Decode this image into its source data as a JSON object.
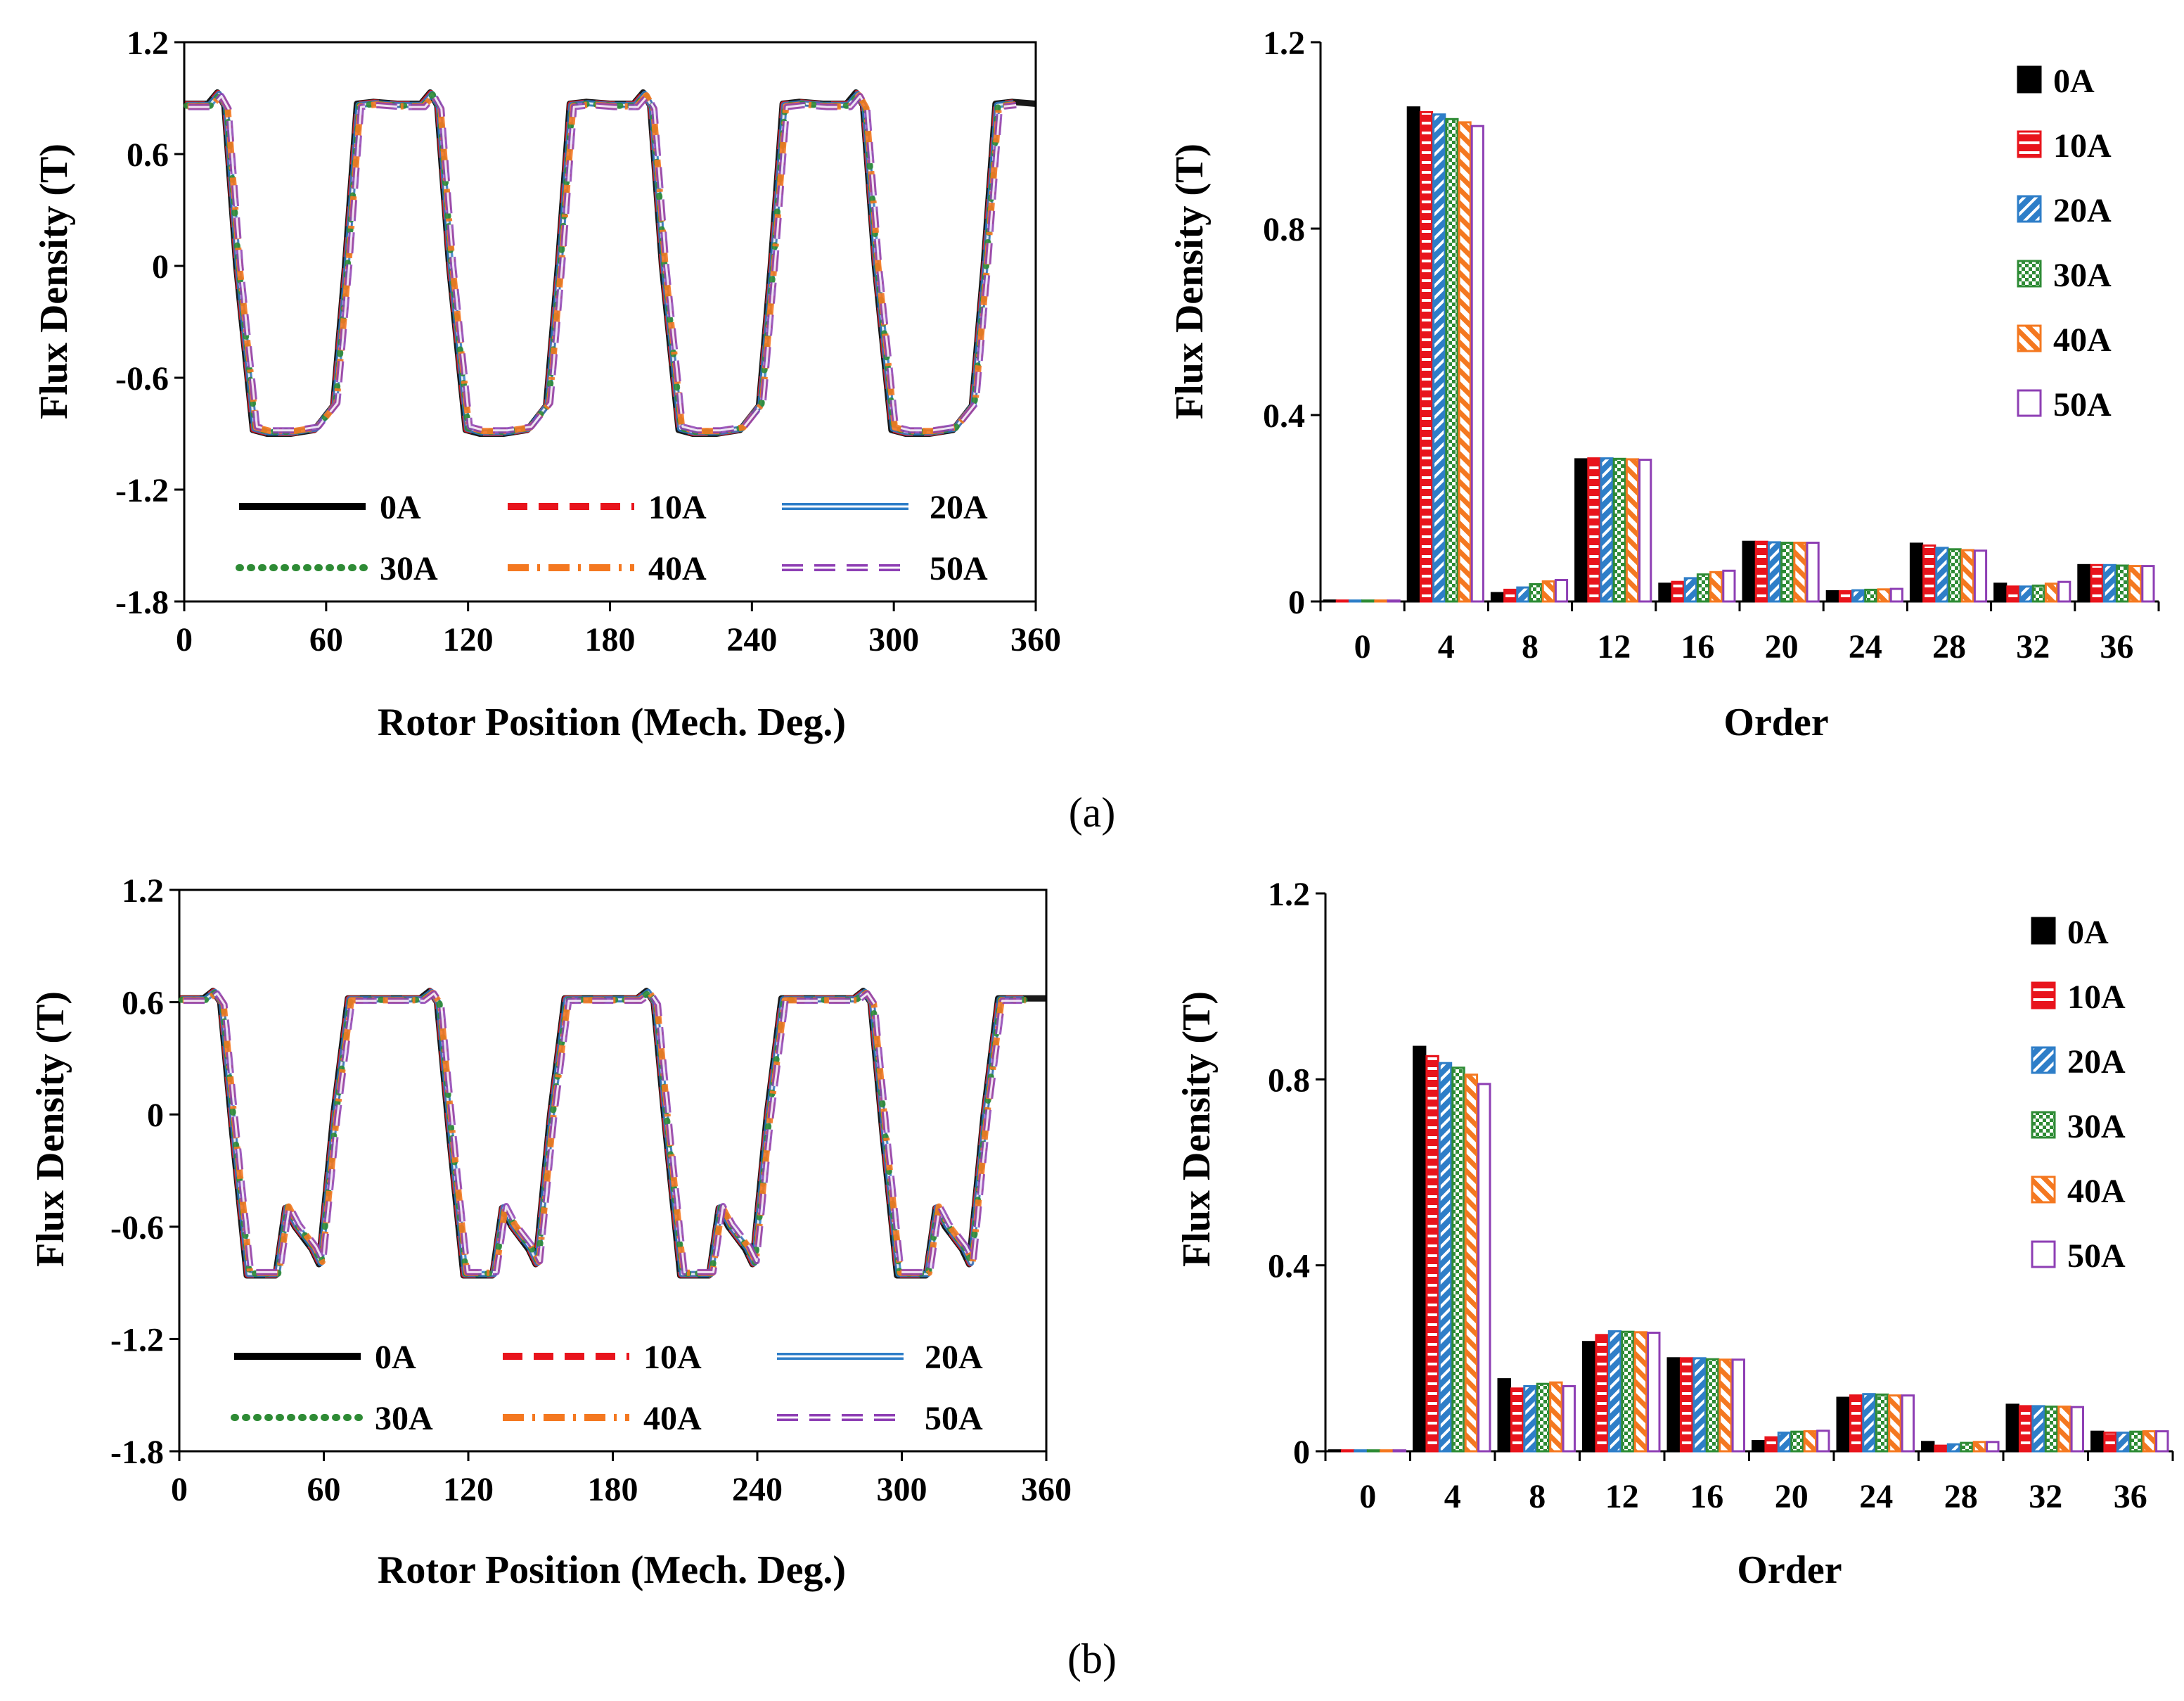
{
  "chart_data": [
    {
      "id": "a-line",
      "type": "line",
      "xlabel": "Rotor Position (Mech. Deg.)",
      "ylabel": "Flux Density (T)",
      "xlim": [
        0,
        360
      ],
      "ylim": [
        -1.8,
        1.2
      ],
      "xticks": [
        "0",
        "60",
        "120",
        "180",
        "240",
        "300",
        "360"
      ],
      "yticks": [
        "1.2",
        "0.6",
        "0",
        "-0.6",
        "-1.2",
        "-1.8"
      ],
      "legend_position": "bottom",
      "series": [
        {
          "name": "0A",
          "color": "#000000",
          "style": "solid"
        },
        {
          "name": "10A",
          "color": "#e8141c",
          "style": "dash"
        },
        {
          "name": "20A",
          "color": "#2e7ec8",
          "style": "double"
        },
        {
          "name": "30A",
          "color": "#2e8b35",
          "style": "dot"
        },
        {
          "name": "40A",
          "color": "#f47820",
          "style": "dashdot"
        },
        {
          "name": "50A",
          "color": "#8e3fb4",
          "style": "doubledash"
        }
      ],
      "waveform": {
        "period_deg": 90,
        "high": 0.87,
        "low": -0.9,
        "rise_start": 63,
        "rise_end": 73,
        "fall_start": 17,
        "fall_end": 29
      },
      "x": [
        0,
        10,
        14,
        17,
        22,
        29,
        35,
        45,
        55,
        63,
        68,
        73,
        80,
        90
      ],
      "y": [
        0.87,
        0.87,
        0.93,
        0.86,
        0.0,
        -0.88,
        -0.9,
        -0.9,
        -0.88,
        -0.75,
        0.0,
        0.87,
        0.88,
        0.87
      ]
    },
    {
      "id": "a-bar",
      "type": "bar",
      "xlabel": "Order",
      "ylabel": "Flux Density (T)",
      "ylim": [
        0,
        1.2
      ],
      "yticks": [
        "1.2",
        "0.8",
        "0.4",
        "0"
      ],
      "categories": [
        "0",
        "4",
        "8",
        "12",
        "16",
        "20",
        "24",
        "28",
        "32",
        "36"
      ],
      "legend_position": "top-right",
      "series": [
        {
          "name": "0A",
          "color": "#000000",
          "values": [
            0.002,
            1.06,
            0.018,
            0.305,
            0.038,
            0.128,
            0.022,
            0.124,
            0.038,
            0.078
          ]
        },
        {
          "name": "10A",
          "color": "#e8141c",
          "values": [
            0.002,
            1.05,
            0.025,
            0.307,
            0.042,
            0.128,
            0.022,
            0.12,
            0.032,
            0.078
          ]
        },
        {
          "name": "20A",
          "color": "#2e7ec8",
          "values": [
            0.002,
            1.045,
            0.03,
            0.307,
            0.05,
            0.127,
            0.024,
            0.115,
            0.032,
            0.078
          ]
        },
        {
          "name": "30A",
          "color": "#2e8b35",
          "values": [
            0.002,
            1.035,
            0.037,
            0.306,
            0.058,
            0.126,
            0.025,
            0.112,
            0.034,
            0.077
          ]
        },
        {
          "name": "40A",
          "color": "#f47820",
          "values": [
            0.002,
            1.028,
            0.043,
            0.305,
            0.063,
            0.126,
            0.026,
            0.11,
            0.038,
            0.076
          ]
        },
        {
          "name": "50A",
          "color": "#8e3fb4",
          "values": [
            0.002,
            1.02,
            0.046,
            0.304,
            0.066,
            0.126,
            0.027,
            0.109,
            0.042,
            0.076
          ]
        }
      ]
    },
    {
      "id": "b-line",
      "type": "line",
      "xlabel": "Rotor Position (Mech. Deg.)",
      "ylabel": "Flux Density (T)",
      "xlim": [
        0,
        360
      ],
      "ylim": [
        -1.8,
        1.2
      ],
      "xticks": [
        "0",
        "60",
        "120",
        "180",
        "240",
        "300",
        "360"
      ],
      "yticks": [
        "1.2",
        "0.6",
        "0",
        "-0.6",
        "-1.2",
        "-1.8"
      ],
      "legend_position": "bottom",
      "series": [
        {
          "name": "0A",
          "color": "#000000",
          "style": "solid"
        },
        {
          "name": "10A",
          "color": "#e8141c",
          "style": "dash"
        },
        {
          "name": "20A",
          "color": "#2e7ec8",
          "style": "double"
        },
        {
          "name": "30A",
          "color": "#2e8b35",
          "style": "dot"
        },
        {
          "name": "40A",
          "color": "#f47820",
          "style": "dashdot"
        },
        {
          "name": "50A",
          "color": "#8e3fb4",
          "style": "doubledash"
        }
      ],
      "waveform": {
        "period_deg": 90,
        "high": 0.62,
        "low": -0.88,
        "rise_start": 58,
        "rise_end": 70,
        "fall_start": 17,
        "fall_end": 28
      },
      "x": [
        0,
        10,
        14,
        17,
        22,
        28,
        40,
        44,
        48,
        55,
        58,
        64,
        70,
        80,
        90
      ],
      "y": [
        0.62,
        0.62,
        0.66,
        0.6,
        -0.1,
        -0.86,
        -0.86,
        -0.5,
        -0.6,
        -0.72,
        -0.8,
        0.0,
        0.62,
        0.62,
        0.62
      ]
    },
    {
      "id": "b-bar",
      "type": "bar",
      "xlabel": "Order",
      "ylabel": "Flux Density (T)",
      "ylim": [
        0,
        1.2
      ],
      "yticks": [
        "1.2",
        "0.8",
        "0.4",
        "0"
      ],
      "categories": [
        "0",
        "4",
        "8",
        "12",
        "16",
        "20",
        "24",
        "28",
        "32",
        "36"
      ],
      "legend_position": "top-right",
      "series": [
        {
          "name": "0A",
          "color": "#000000",
          "values": [
            0.002,
            0.87,
            0.155,
            0.235,
            0.2,
            0.022,
            0.115,
            0.02,
            0.1,
            0.042
          ]
        },
        {
          "name": "10A",
          "color": "#e8141c",
          "values": [
            0.002,
            0.85,
            0.135,
            0.25,
            0.2,
            0.03,
            0.12,
            0.012,
            0.097,
            0.04
          ]
        },
        {
          "name": "20A",
          "color": "#2e7ec8",
          "values": [
            0.002,
            0.835,
            0.14,
            0.258,
            0.2,
            0.04,
            0.123,
            0.015,
            0.097,
            0.04
          ]
        },
        {
          "name": "30A",
          "color": "#2e8b35",
          "values": [
            0.002,
            0.825,
            0.145,
            0.257,
            0.198,
            0.042,
            0.122,
            0.018,
            0.096,
            0.042
          ]
        },
        {
          "name": "40A",
          "color": "#f47820",
          "values": [
            0.002,
            0.81,
            0.148,
            0.256,
            0.197,
            0.043,
            0.12,
            0.02,
            0.096,
            0.043
          ]
        },
        {
          "name": "50A",
          "color": "#8e3fb4",
          "values": [
            0.002,
            0.79,
            0.14,
            0.255,
            0.197,
            0.044,
            0.12,
            0.02,
            0.095,
            0.043
          ]
        }
      ]
    }
  ],
  "captions": {
    "a": "(a)",
    "b": "(b)"
  }
}
